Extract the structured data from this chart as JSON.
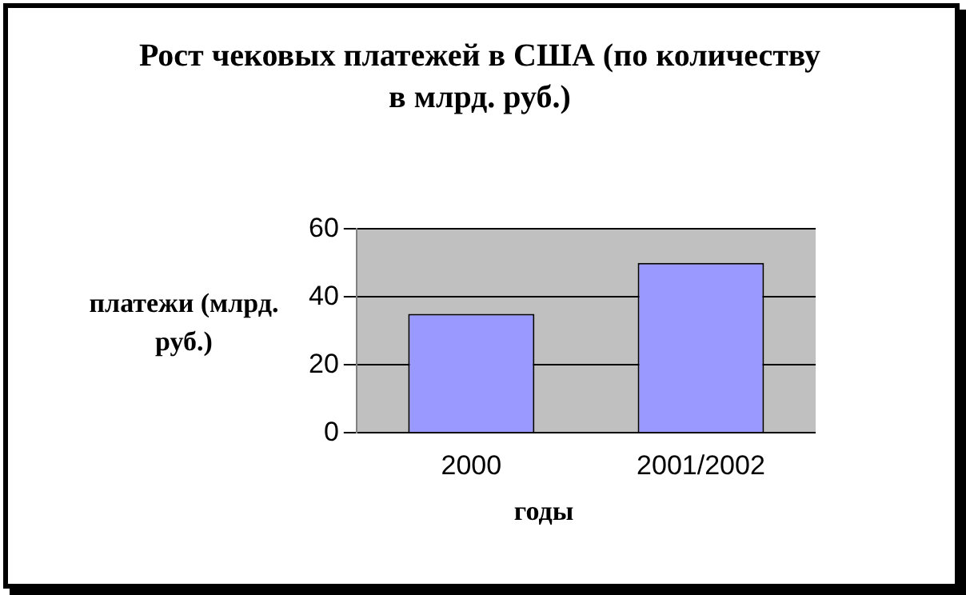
{
  "chart_data": {
    "type": "bar",
    "title": "Рост чековых платежей в США (по количеству в млрд. руб.)",
    "xlabel": "годы",
    "ylabel": "платежи (млрд. руб.)",
    "categories": [
      "2000",
      "2001/2002"
    ],
    "series": [
      {
        "color": "#9999ff",
        "values": [
          35,
          50
        ]
      }
    ],
    "ylim": [
      0,
      60
    ],
    "yticks": [
      0,
      20,
      40,
      60
    ],
    "grid": "y",
    "legend": false
  }
}
